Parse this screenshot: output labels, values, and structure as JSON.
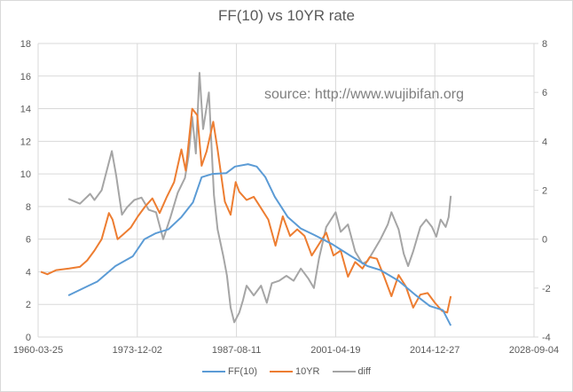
{
  "chart_data": {
    "type": "line",
    "title": "FF(10) vs 10YR rate",
    "annotation": "source: http://www.wujibifan.org",
    "xlabel": "",
    "ylabel": "",
    "y2label": "",
    "x_tick_labels": [
      "1960-03-25",
      "1973-12-02",
      "1987-08-11",
      "2001-04-19",
      "2014-12-27",
      "2028-09-04"
    ],
    "x_ticks_year": [
      1960.23,
      1973.92,
      1987.61,
      2001.3,
      2014.99,
      2028.68
    ],
    "xlim_year": [
      1960.23,
      2028.68
    ],
    "ylim": [
      0,
      18
    ],
    "y_ticks": [
      0,
      2,
      4,
      6,
      8,
      10,
      12,
      14,
      16,
      18
    ],
    "y2lim": [
      -4,
      8
    ],
    "y2_ticks": [
      -4,
      -2,
      0,
      2,
      4,
      6,
      8
    ],
    "grid": true,
    "legend_position": "bottom",
    "series": [
      {
        "name": "FF(10)",
        "axis": "left",
        "color": "#5b9bd5",
        "points": [
          [
            1964.4,
            2.55
          ],
          [
            1967.2,
            3.15
          ],
          [
            1968.4,
            3.4
          ],
          [
            1970.9,
            4.35
          ],
          [
            1973.3,
            4.95
          ],
          [
            1974.9,
            6.0
          ],
          [
            1976.4,
            6.35
          ],
          [
            1978.2,
            6.6
          ],
          [
            1980.0,
            7.35
          ],
          [
            1981.6,
            8.25
          ],
          [
            1982.8,
            9.8
          ],
          [
            1984.3,
            10.0
          ],
          [
            1986.2,
            10.05
          ],
          [
            1987.4,
            10.45
          ],
          [
            1989.2,
            10.6
          ],
          [
            1990.4,
            10.45
          ],
          [
            1991.6,
            9.8
          ],
          [
            1992.9,
            8.6
          ],
          [
            1994.7,
            7.35
          ],
          [
            1996.5,
            6.65
          ],
          [
            1998.4,
            6.25
          ],
          [
            2000.8,
            5.7
          ],
          [
            2003.3,
            5.0
          ],
          [
            2005.7,
            4.35
          ],
          [
            2007.5,
            4.1
          ],
          [
            2010.0,
            3.45
          ],
          [
            2012.4,
            2.55
          ],
          [
            2014.3,
            1.9
          ],
          [
            2016.1,
            1.65
          ],
          [
            2017.2,
            0.7
          ]
        ]
      },
      {
        "name": "10YR",
        "axis": "left",
        "color": "#ed7d31",
        "points": [
          [
            1960.6,
            4.0
          ],
          [
            1961.5,
            3.85
          ],
          [
            1962.7,
            4.1
          ],
          [
            1964.5,
            4.2
          ],
          [
            1966,
            4.3
          ],
          [
            1967,
            4.7
          ],
          [
            1968,
            5.3
          ],
          [
            1969,
            6.0
          ],
          [
            1970,
            7.6
          ],
          [
            1970.5,
            7.2
          ],
          [
            1971.2,
            6.0
          ],
          [
            1972,
            6.3
          ],
          [
            1973,
            6.7
          ],
          [
            1974,
            7.4
          ],
          [
            1975,
            8.0
          ],
          [
            1976,
            8.5
          ],
          [
            1977,
            7.6
          ],
          [
            1978,
            8.6
          ],
          [
            1979,
            9.5
          ],
          [
            1980,
            11.5
          ],
          [
            1980.6,
            10.2
          ],
          [
            1981.5,
            14.0
          ],
          [
            1982.2,
            13.6
          ],
          [
            1982.8,
            10.5
          ],
          [
            1983.5,
            11.4
          ],
          [
            1984.4,
            13.2
          ],
          [
            1985,
            11.5
          ],
          [
            1986,
            8.3
          ],
          [
            1986.8,
            7.5
          ],
          [
            1987.5,
            9.5
          ],
          [
            1988,
            8.9
          ],
          [
            1989,
            8.4
          ],
          [
            1990,
            8.6
          ],
          [
            1991,
            7.9
          ],
          [
            1992,
            7.2
          ],
          [
            1993,
            5.6
          ],
          [
            1994,
            7.4
          ],
          [
            1995,
            6.2
          ],
          [
            1996,
            6.6
          ],
          [
            1997,
            6.2
          ],
          [
            1998,
            5.0
          ],
          [
            2000,
            6.4
          ],
          [
            2001,
            5.0
          ],
          [
            2002,
            5.3
          ],
          [
            2003,
            3.7
          ],
          [
            2004,
            4.6
          ],
          [
            2005,
            4.2
          ],
          [
            2006,
            4.9
          ],
          [
            2007,
            4.8
          ],
          [
            2008,
            3.7
          ],
          [
            2009,
            2.5
          ],
          [
            2010,
            3.8
          ],
          [
            2011,
            3.1
          ],
          [
            2012,
            1.8
          ],
          [
            2013,
            2.6
          ],
          [
            2014,
            2.7
          ],
          [
            2015,
            2.1
          ],
          [
            2016,
            1.6
          ],
          [
            2016.7,
            1.5
          ],
          [
            2017.2,
            2.5
          ]
        ]
      },
      {
        "name": "diff",
        "axis": "right",
        "color": "#a5a5a5",
        "points": [
          [
            1964.4,
            1.65
          ],
          [
            1966,
            1.45
          ],
          [
            1967.4,
            1.85
          ],
          [
            1968,
            1.6
          ],
          [
            1969,
            2.0
          ],
          [
            1970.4,
            3.6
          ],
          [
            1971,
            2.6
          ],
          [
            1971.8,
            1.0
          ],
          [
            1972.5,
            1.3
          ],
          [
            1973.5,
            1.6
          ],
          [
            1974.5,
            1.7
          ],
          [
            1975.5,
            1.2
          ],
          [
            1976.5,
            1.1
          ],
          [
            1977.5,
            0.0
          ],
          [
            1978.5,
            0.9
          ],
          [
            1979.5,
            1.9
          ],
          [
            1980.5,
            2.5
          ],
          [
            1981,
            3.4
          ],
          [
            1981.5,
            5.0
          ],
          [
            1982,
            3.5
          ],
          [
            1982.5,
            6.8
          ],
          [
            1983,
            4.5
          ],
          [
            1983.8,
            6.0
          ],
          [
            1984.5,
            1.8
          ],
          [
            1985,
            0.4
          ],
          [
            1985.8,
            -0.7
          ],
          [
            1986.3,
            -1.5
          ],
          [
            1986.8,
            -2.8
          ],
          [
            1987.3,
            -3.4
          ],
          [
            1988,
            -3.0
          ],
          [
            1988.5,
            -2.5
          ],
          [
            1989,
            -1.9
          ],
          [
            1990,
            -2.3
          ],
          [
            1991,
            -1.9
          ],
          [
            1991.8,
            -2.6
          ],
          [
            1992.5,
            -1.8
          ],
          [
            1993.5,
            -1.7
          ],
          [
            1994.5,
            -1.5
          ],
          [
            1995.5,
            -1.7
          ],
          [
            1996.5,
            -1.2
          ],
          [
            1997.5,
            -1.6
          ],
          [
            1998.3,
            -2.0
          ],
          [
            1999,
            -0.8
          ],
          [
            2000,
            0.5
          ],
          [
            2001.3,
            1.1
          ],
          [
            2002,
            0.3
          ],
          [
            2003,
            0.6
          ],
          [
            2004,
            -0.5
          ],
          [
            2005,
            -1.0
          ],
          [
            2005.7,
            -0.9
          ],
          [
            2006.5,
            -0.5
          ],
          [
            2007.5,
            0.0
          ],
          [
            2008.5,
            0.6
          ],
          [
            2009,
            1.1
          ],
          [
            2010,
            0.4
          ],
          [
            2010.7,
            -0.6
          ],
          [
            2011.3,
            -1.1
          ],
          [
            2012,
            -0.5
          ],
          [
            2013,
            0.5
          ],
          [
            2013.8,
            0.8
          ],
          [
            2014.6,
            0.5
          ],
          [
            2015.2,
            0.1
          ],
          [
            2015.8,
            0.8
          ],
          [
            2016.5,
            0.5
          ],
          [
            2016.9,
            0.9
          ],
          [
            2017.2,
            1.77
          ]
        ]
      }
    ]
  },
  "colors": {
    "grid": "#d9d9d9",
    "axis_text": "#595959",
    "annotation": "#7f7f7f"
  }
}
